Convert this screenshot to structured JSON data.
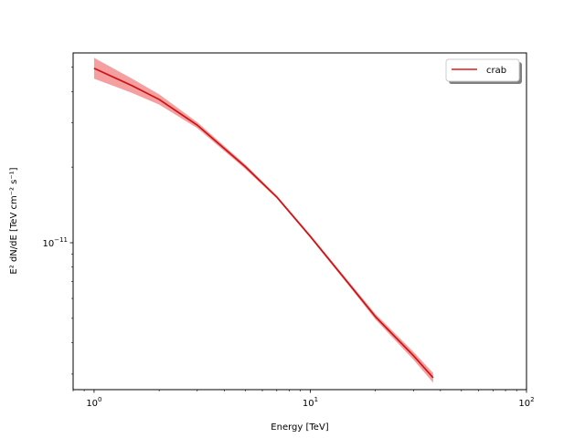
{
  "chart_data": {
    "type": "line",
    "xscale": "log",
    "yscale": "log",
    "xlim": [
      0.8,
      100
    ],
    "ylim": [
      2.6e-12,
      5.7e-11
    ],
    "xlabel": "Energy [TeV]",
    "ylabel": "E² dN/dE [TeV cm⁻² s⁻¹]",
    "x_ticks": [
      {
        "value": 1,
        "base": "10",
        "exp": "0"
      },
      {
        "value": 10,
        "base": "10",
        "exp": "1"
      },
      {
        "value": 100,
        "base": "10",
        "exp": "2"
      }
    ],
    "y_ticks": [
      {
        "value": 1e-11,
        "base": "10",
        "exp": "−11"
      }
    ],
    "legend": {
      "position": "upper right",
      "entries": [
        "crab"
      ]
    },
    "series": [
      {
        "name": "crab",
        "color": "#e31a1c",
        "band_color": "#f08080",
        "x": [
          1,
          1.5,
          2,
          3,
          5,
          7,
          10,
          15,
          20,
          30,
          37
        ],
        "y": [
          4.95e-11,
          4.22e-11,
          3.72e-11,
          2.94e-11,
          2.01e-11,
          1.52e-11,
          1.06e-11,
          6.9e-12,
          5.08e-12,
          3.55e-12,
          2.9e-12
        ],
        "y_low": [
          4.5e-11,
          3.95e-11,
          3.55e-11,
          2.86e-11,
          1.97e-11,
          1.5e-11,
          1.045e-11,
          6.78e-12,
          4.95e-12,
          3.42e-12,
          2.77e-12
        ],
        "y_high": [
          5.45e-11,
          4.5e-11,
          3.9e-11,
          3.02e-11,
          2.05e-11,
          1.54e-11,
          1.075e-11,
          7.02e-12,
          5.21e-12,
          3.68e-12,
          3.03e-12
        ]
      }
    ]
  }
}
